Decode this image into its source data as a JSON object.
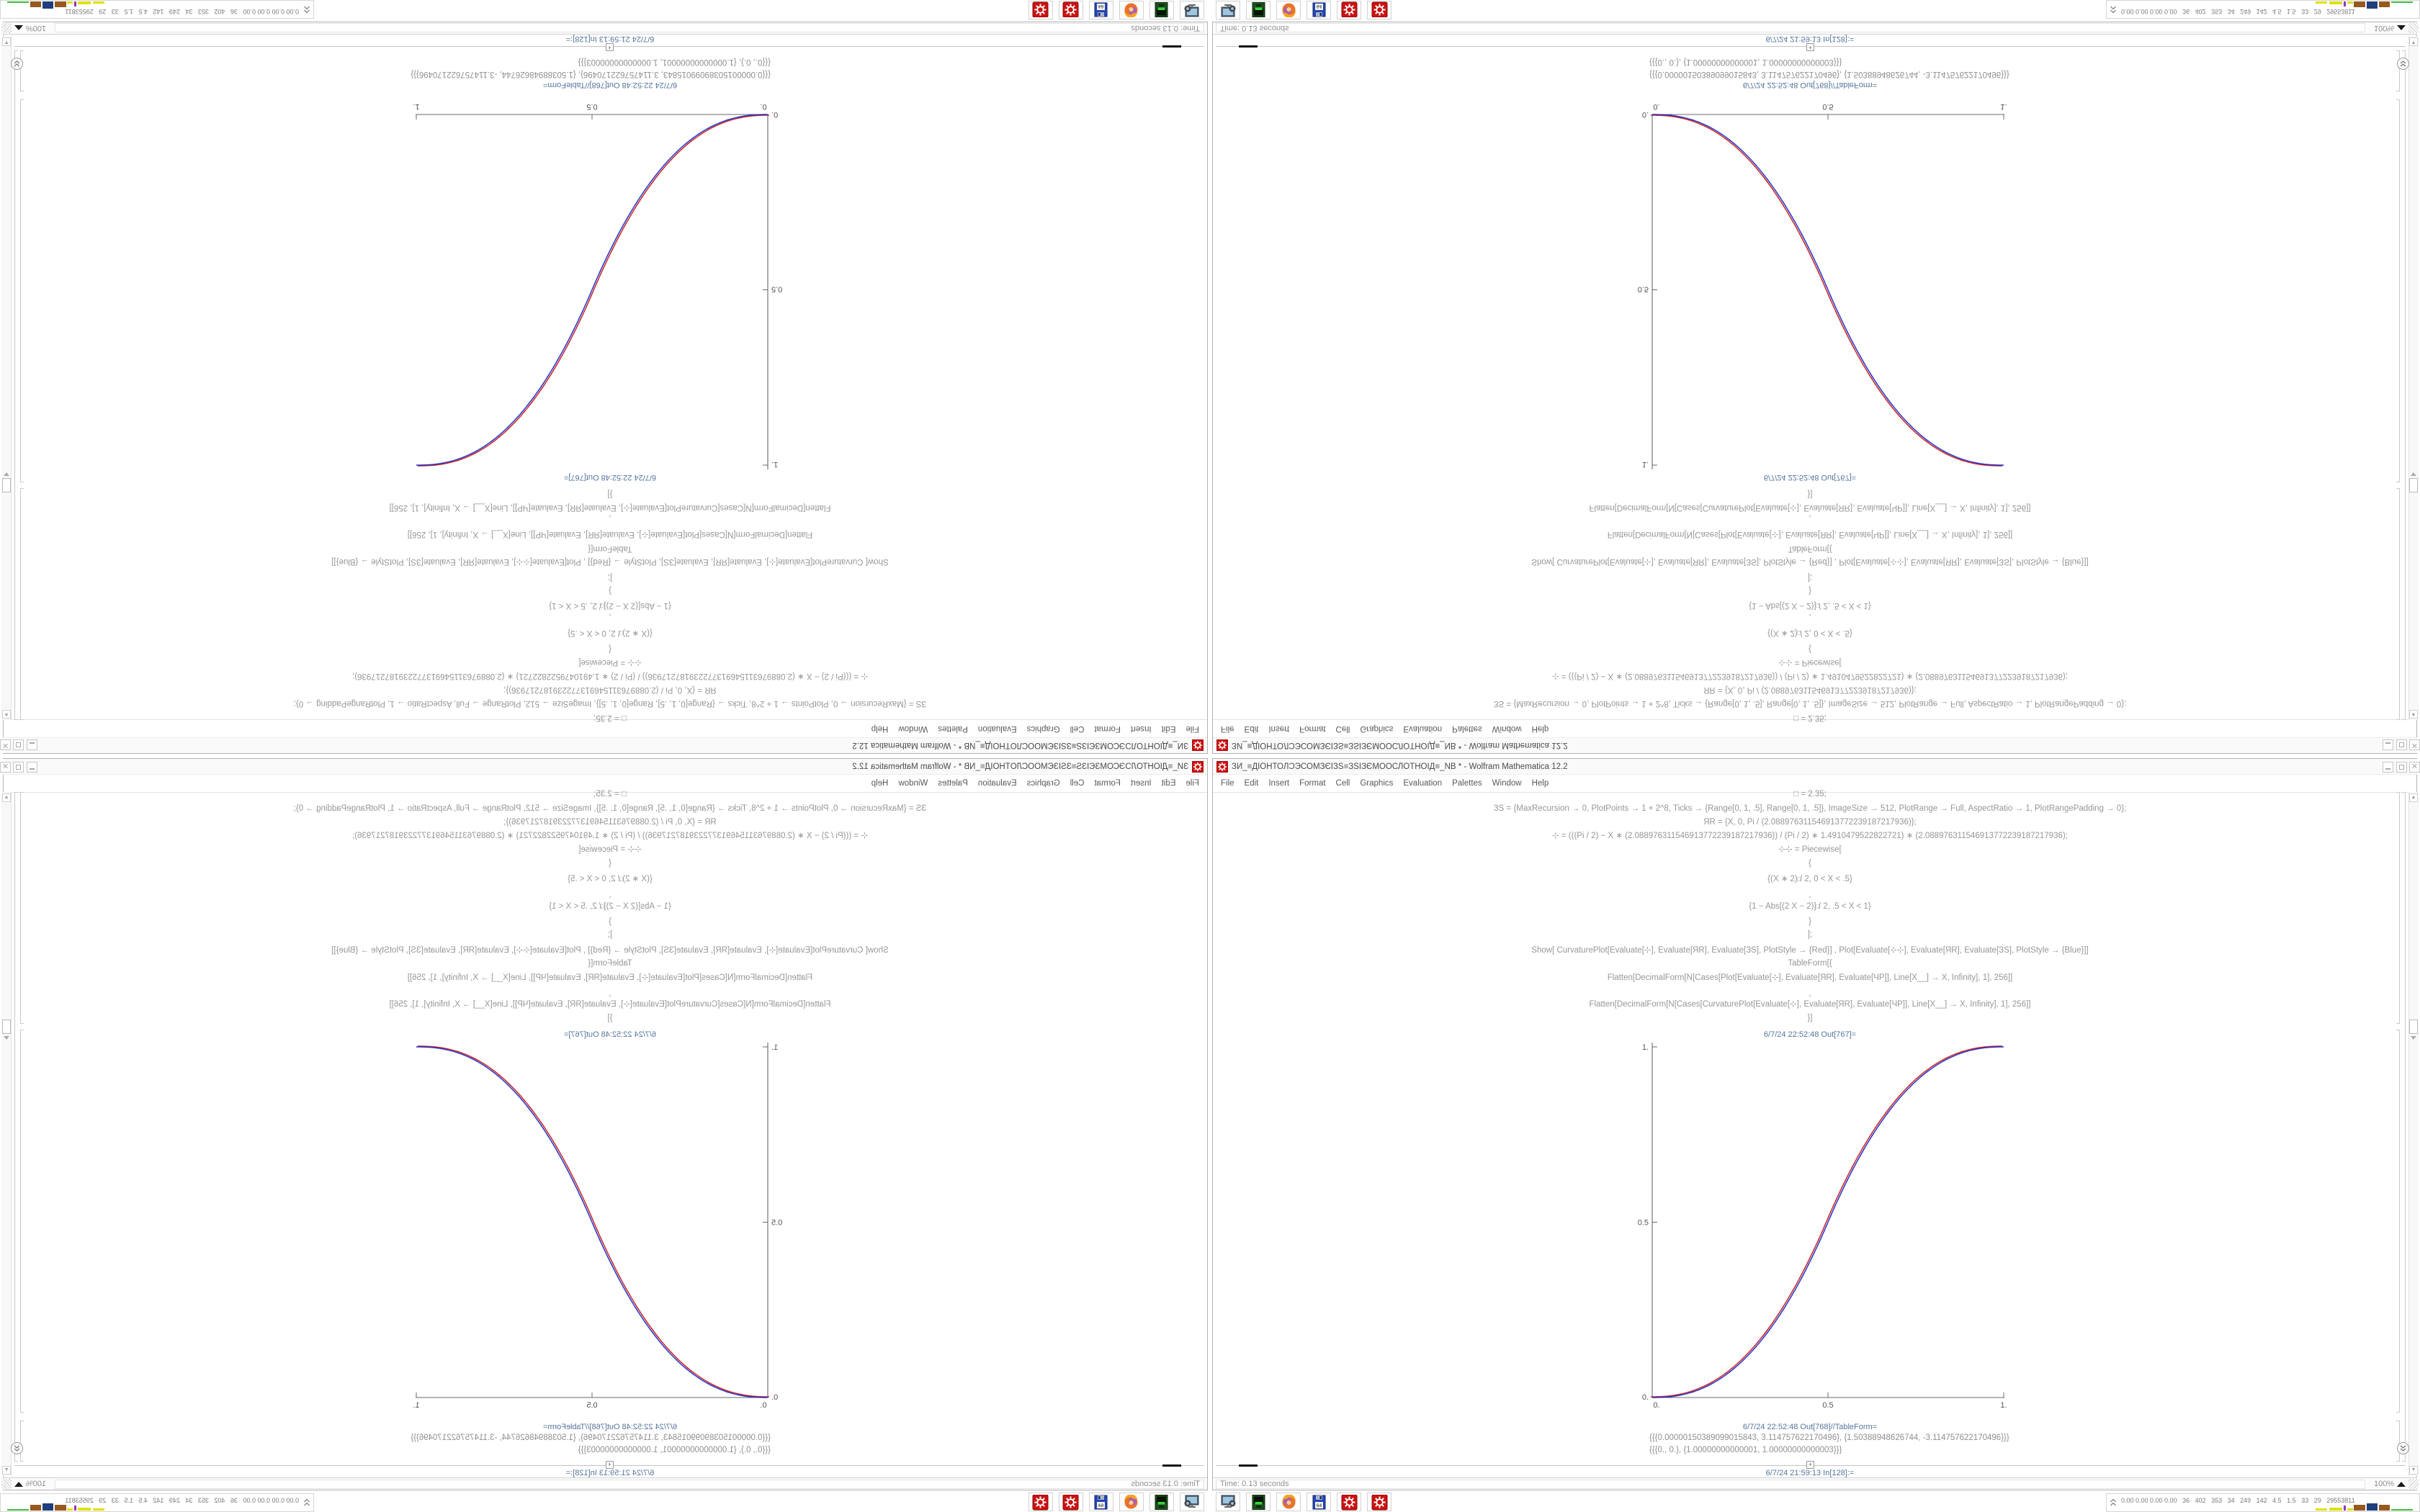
{
  "window": {
    "title": "ЗИ_≡ДІОНТОЛϽЭСОМЗЄІЗЅ≡ЗЅІЗЄМООСЛОТНОІД≡_NB * - Wolfram Mathematica 12.2",
    "buttons": {
      "minimize": "minimize",
      "maximize": "maximize",
      "close": "✕"
    }
  },
  "menu": {
    "items": [
      "File",
      "Edit",
      "Insert",
      "Format",
      "Cell",
      "Graphics",
      "Evaluation",
      "Palettes",
      "Window",
      "Help"
    ]
  },
  "notebook": {
    "code_color": "#969696",
    "label_color": "#54759c",
    "lines": [
      {
        "y": 53,
        "text": "□ = 2.35;"
      },
      {
        "y": 73,
        "text": "ЗЅ = {MaxRecursion → 0, PlotPoints → 1 + 2^8, Ticks → {Range[0, 1, .5], Range[0, 1, .5]}, ImageSize → 512, PlotRange → Full, AspectRatio → 1, PlotRangePadding → 0};"
      },
      {
        "y": 92,
        "text": "ЯR = {X, 0, Pi / (2.088976311546913772239187217936)};"
      },
      {
        "y": 111,
        "text": "⊹ = (((Pi / 2) − X ∗ (2.088976311546913772239187217936)) / (Pi / 2) ∗ 1.4910479522822721) ∗ (2.088976311546913772239187217936);"
      },
      {
        "y": 130,
        "text": "⊹⊹ = Piecewise["
      },
      {
        "y": 149,
        "text": "{"
      },
      {
        "y": 171,
        "text": "{(X ∗ 2)^□ / 2, 0 < X < .5}"
      },
      {
        "y": 193,
        "text": ","
      },
      {
        "y": 209,
        "text": "{1 − Abs[(2 X − 2)]^□ / 2, .5 < X < 1}"
      },
      {
        "y": 230,
        "text": "}"
      },
      {
        "y": 248,
        "text": "];"
      },
      {
        "y": 270,
        "text": "Show[  CurvaturePlot[Evaluate[⊹], Evaluate[ЯR], Evaluate[ЗЅ], PlotStyle → {Red}]  ,  Plot[Evaluate[⊹⊹], Evaluate[ЯR], Evaluate[ЗЅ], PlotStyle → {Blue}]]"
      },
      {
        "y": 288,
        "text": "TableForm[{"
      },
      {
        "y": 308,
        "text": "Flatten[DecimalForm[N[Cases[Plot[Evaluate[⊹], Evaluate[ЯR], Evaluate[ЧР]], Line[X__] → X, Infinity], 1], 256]]"
      },
      {
        "y": 330,
        "text": ","
      },
      {
        "y": 345,
        "text": "Flatten[DecimalForm[N[Cases[CurvaturePlot[Evaluate[⊹], Evaluate[ЯR], Evaluate[ЧР]], Line[X__] → X, Infinity], 1], 256]]"
      },
      {
        "y": 364,
        "text": "}]"
      }
    ],
    "out_label_1": "6/7/24 22:52:48 Out[767]=",
    "out_label_2": "6/7/24 22:52:48 Out[768]//TableForm=",
    "table_rows": [
      "{{{0.00000150389099015843, 3.114757622170496}, {1.50388948626744, -3.114757622170496}}}",
      "{{{0., 0.}, {1.00000000000001, 1.00000000000003}}}"
    ],
    "in_label": "6/7/24 21:59:13 In[128]:="
  },
  "chart_data": {
    "type": "line",
    "title": "",
    "xlabel": "",
    "ylabel": "",
    "xlim": [
      0,
      1
    ],
    "ylim": [
      0,
      1
    ],
    "x_ticks": [
      "0.",
      "0.5",
      "1."
    ],
    "y_ticks": [
      "0.",
      "0.5",
      "1."
    ],
    "grid": false,
    "legend": false,
    "exponent": 2.35,
    "x": [
      0,
      0.05,
      0.1,
      0.15,
      0.2,
      0.25,
      0.3,
      0.35,
      0.4,
      0.45,
      0.5,
      0.55,
      0.6,
      0.65,
      0.7,
      0.75,
      0.8,
      0.85,
      0.9,
      0.95,
      1
    ],
    "series": [
      {
        "name": "CurvaturePlot",
        "color": "#cc2222",
        "values": [
          0,
          0.0022,
          0.0114,
          0.0295,
          0.058,
          0.098,
          0.1505,
          0.216,
          0.296,
          0.39,
          0.5,
          0.61,
          0.704,
          0.784,
          0.8495,
          0.902,
          0.942,
          0.9705,
          0.9886,
          0.9978,
          1
        ]
      },
      {
        "name": "Plot",
        "color": "#2233cc",
        "values": [
          0,
          0.0022,
          0.0114,
          0.0295,
          0.058,
          0.098,
          0.1505,
          0.216,
          0.296,
          0.39,
          0.5,
          0.61,
          0.704,
          0.784,
          0.8495,
          0.902,
          0.942,
          0.9705,
          0.9886,
          0.9978,
          1
        ]
      }
    ]
  },
  "statusbar": {
    "time": "Time: 0.13 seconds",
    "zoom": "100%"
  },
  "taskbar": {
    "icons": [
      "screenshot-tool",
      "terminal",
      "firefox",
      "floppy-64",
      "mathematica-gear",
      "mathematica-gear"
    ],
    "floppy_label": "64"
  },
  "sysmon": {
    "values": "0.00 0.00 0.00 0.00   36   402   353   34   249   142   4.5   1.5   33   29   29553811",
    "bars": [
      {
        "x": 290,
        "w": 16,
        "h": 3,
        "c": "#e0e000"
      },
      {
        "x": 309,
        "w": 18,
        "h": 4,
        "c": "#e0e000"
      },
      {
        "x": 329,
        "w": 3,
        "h": 7,
        "c": "#9933bb"
      },
      {
        "x": 334,
        "w": 8,
        "h": 3,
        "c": "#e0e000"
      },
      {
        "x": 343,
        "w": 16,
        "h": 8,
        "c": "#96591e"
      },
      {
        "x": 361,
        "w": 15,
        "h": 10,
        "c": "#1e3f7d"
      },
      {
        "x": 378,
        "w": 15,
        "h": 8,
        "c": "#96591e"
      },
      {
        "x": 395,
        "w": 30,
        "h": 2,
        "c": "#3dbb3d"
      }
    ]
  }
}
